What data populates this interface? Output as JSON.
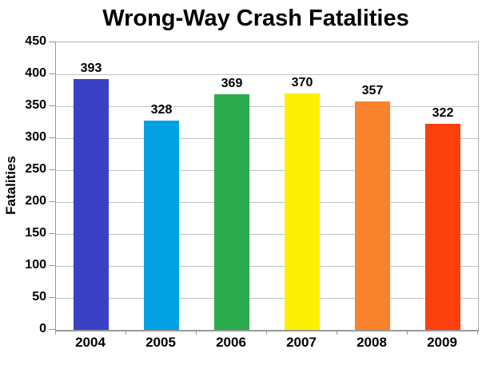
{
  "chart_data": {
    "type": "bar",
    "title": "Wrong-Way Crash Fatalities",
    "xlabel": "",
    "ylabel": "Fatalities",
    "categories": [
      "2004",
      "2005",
      "2006",
      "2007",
      "2008",
      "2009"
    ],
    "values": [
      393,
      328,
      369,
      370,
      357,
      322
    ],
    "bar_colors": [
      "#3b41c5",
      "#00a0e2",
      "#2bab4d",
      "#fcf005",
      "#f9822c",
      "#fb3f0d"
    ],
    "ylim": [
      0,
      450
    ],
    "ytick_step": 50,
    "yticks": [
      0,
      50,
      100,
      150,
      200,
      250,
      300,
      350,
      400,
      450
    ],
    "grid": "horizontal",
    "legend": "none",
    "data_labels": "above-bars",
    "colors": {
      "grid": "#c3c3c3",
      "border": "#b2b2b2",
      "axis": "#999999",
      "text": "#000000",
      "background": "#ffffff"
    }
  }
}
